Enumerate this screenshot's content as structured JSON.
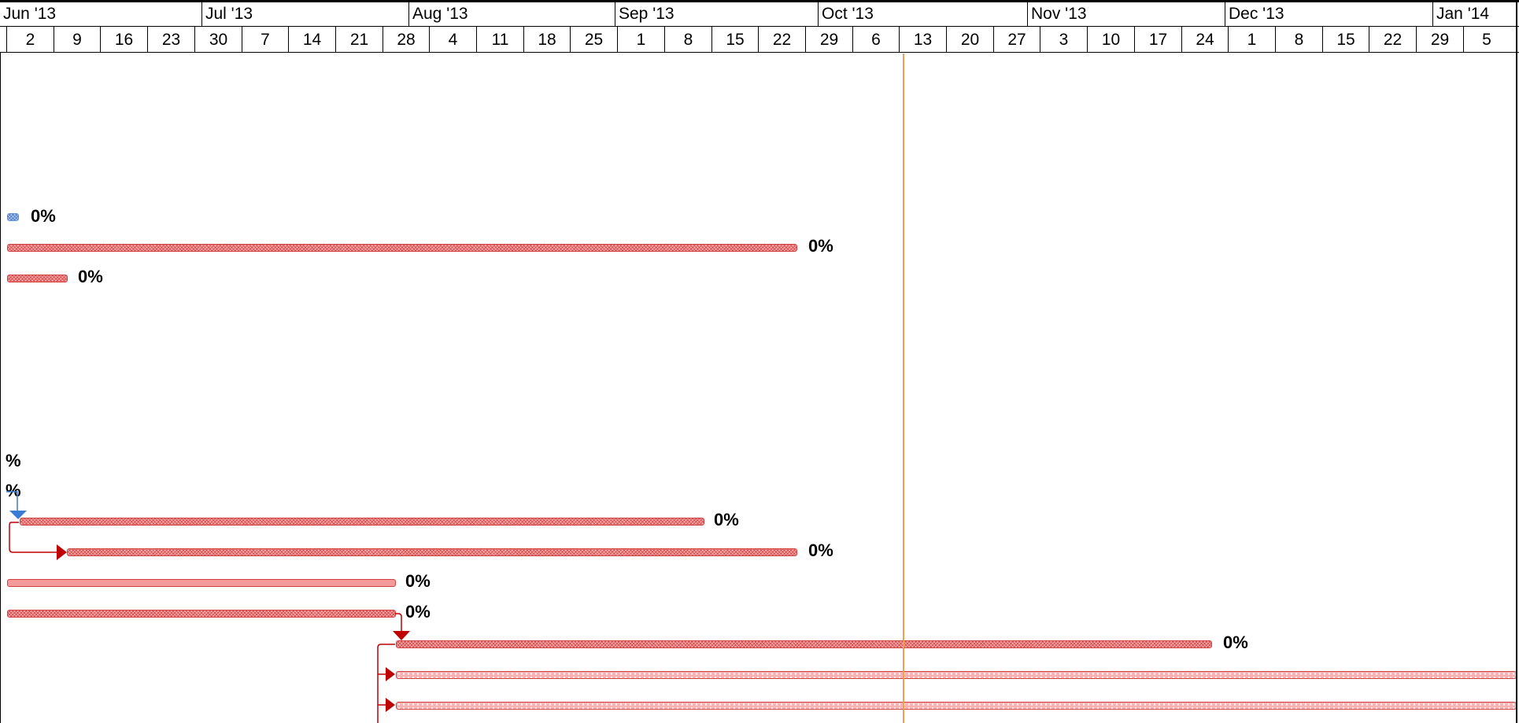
{
  "timescale": {
    "months": [
      "Jun '13",
      "Jul '13",
      "Aug '13",
      "Sep '13",
      "Oct '13",
      "Nov '13",
      "Dec '13",
      "Jan '14"
    ],
    "weeks": [
      "2",
      "9",
      "16",
      "23",
      "30",
      "7",
      "14",
      "21",
      "28",
      "4",
      "11",
      "18",
      "25",
      "1",
      "8",
      "15",
      "22",
      "29",
      "6",
      "13",
      "20",
      "27",
      "3",
      "10",
      "17",
      "24",
      "1",
      "8",
      "15",
      "22",
      "29",
      "5"
    ]
  },
  "bars": [
    {
      "name": "task-bar-1",
      "style": "blue",
      "percent": "0%"
    },
    {
      "name": "task-bar-2",
      "style": "red",
      "percent": "0%"
    },
    {
      "name": "task-bar-3",
      "style": "red",
      "percent": "0%"
    },
    {
      "name": "task-bar-4",
      "style": "red",
      "percent": "0%"
    },
    {
      "name": "task-bar-5",
      "style": "red",
      "percent": "0%"
    },
    {
      "name": "task-bar-6",
      "style": "solid",
      "percent": "0%"
    },
    {
      "name": "task-bar-7",
      "style": "red",
      "percent": "0%"
    },
    {
      "name": "task-bar-8",
      "style": "red",
      "percent": "0%"
    },
    {
      "name": "task-bar-9",
      "style": "dotted",
      "percent": ""
    },
    {
      "name": "task-bar-10",
      "style": "dotted",
      "percent": ""
    }
  ],
  "partial_labels": [
    "%",
    "%"
  ],
  "colors": {
    "status_date_line": "#f0a050",
    "link_red": "#c00000",
    "link_blue": "#3a7bd5"
  }
}
